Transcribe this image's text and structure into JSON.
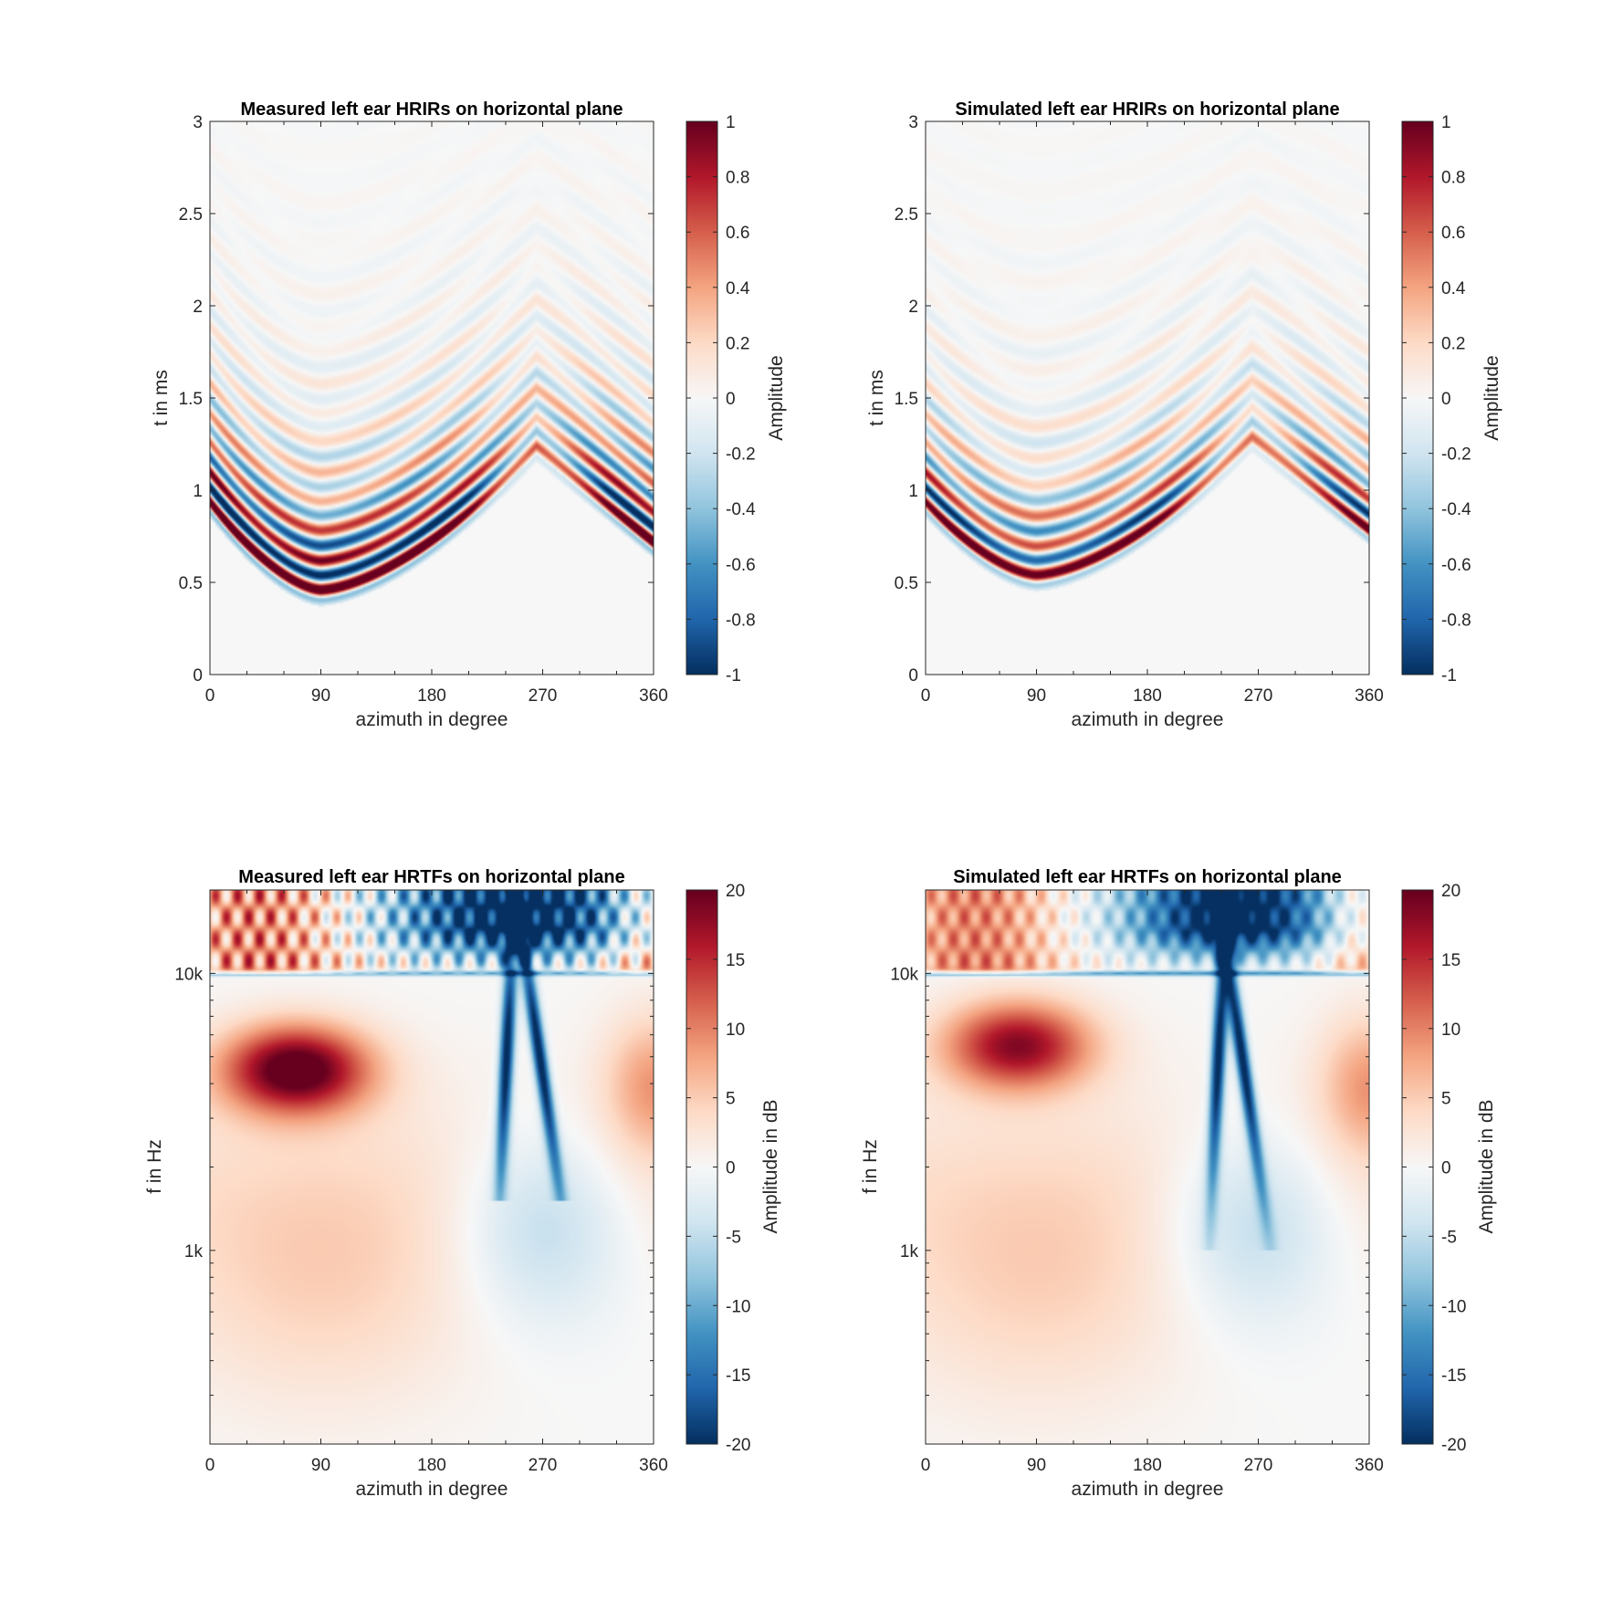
{
  "figure": {
    "background": "#ffffff"
  },
  "colormap": {
    "name": "RdBu (reversed)",
    "stops": [
      "#053061",
      "#2166ac",
      "#4393c3",
      "#92c5de",
      "#d1e5f0",
      "#f7f7f7",
      "#fddbc7",
      "#f4a582",
      "#d6604d",
      "#b2182b",
      "#67001f"
    ]
  },
  "chart_data": [
    {
      "id": "measured-hrir",
      "type": "heatmap",
      "title": "Measured left ear HRIRs on horizontal plane",
      "xlabel": "azimuth in degree",
      "ylabel": "t in ms",
      "xlim": [
        0,
        360
      ],
      "ylim": [
        0,
        3
      ],
      "xticks": [
        0,
        90,
        180,
        270,
        360
      ],
      "xtick_labels": [
        "0",
        "90",
        "180",
        "270",
        "360"
      ],
      "yticks": [
        0,
        0.5,
        1,
        1.5,
        2,
        2.5,
        3
      ],
      "ytick_labels": [
        "0",
        "0.5",
        "1",
        "1.5",
        "2",
        "2.5",
        "3"
      ],
      "yscale": "linear",
      "colorbar": {
        "label": "Amplitude",
        "clim": [
          -1,
          1
        ],
        "ticks": [
          -1,
          -0.8,
          -0.6,
          -0.4,
          -0.2,
          0,
          0.2,
          0.4,
          0.6,
          0.8,
          1
        ],
        "tick_labels": [
          "-1",
          "-0.8",
          "-0.6",
          "-0.4",
          "-0.2",
          "0",
          "0.2",
          "0.4",
          "0.6",
          "0.8",
          "1"
        ]
      },
      "pattern": {
        "kind": "hrir",
        "onset_min_ms": 0.42,
        "onset_min_az": 90,
        "secondary_peak_az": 265,
        "secondary_peak_ms": 1.2,
        "right_edge_ms": 0.68,
        "ringing_decay": 1.0,
        "amplitude": 1.6
      }
    },
    {
      "id": "simulated-hrir",
      "type": "heatmap",
      "title": "Simulated left ear HRIRs on horizontal plane",
      "xlabel": "azimuth in degree",
      "ylabel": "t in ms",
      "xlim": [
        0,
        360
      ],
      "ylim": [
        0,
        3
      ],
      "xticks": [
        0,
        90,
        180,
        270,
        360
      ],
      "xtick_labels": [
        "0",
        "90",
        "180",
        "270",
        "360"
      ],
      "yticks": [
        0,
        0.5,
        1,
        1.5,
        2,
        2.5,
        3
      ],
      "ytick_labels": [
        "0",
        "0.5",
        "1",
        "1.5",
        "2",
        "2.5",
        "3"
      ],
      "yscale": "linear",
      "colorbar": {
        "label": "Amplitude",
        "clim": [
          -1,
          1
        ],
        "ticks": [
          -1,
          -0.8,
          -0.6,
          -0.4,
          -0.2,
          0,
          0.2,
          0.4,
          0.6,
          0.8,
          1
        ],
        "tick_labels": [
          "-1",
          "-0.8",
          "-0.6",
          "-0.4",
          "-0.2",
          "0",
          "0.2",
          "0.4",
          "0.6",
          "0.8",
          "1"
        ]
      },
      "pattern": {
        "kind": "hrir",
        "onset_min_ms": 0.5,
        "onset_min_az": 90,
        "secondary_peak_az": 265,
        "secondary_peak_ms": 1.25,
        "right_edge_ms": 0.75,
        "ringing_decay": 0.7,
        "amplitude": 1.3
      }
    },
    {
      "id": "measured-hrtf",
      "type": "heatmap",
      "title": "Measured left ear HRTFs on horizontal plane",
      "xlabel": "azimuth in degree",
      "ylabel": "f in Hz",
      "xlim": [
        0,
        360
      ],
      "ylim": [
        200,
        20000
      ],
      "xticks": [
        0,
        90,
        180,
        270,
        360
      ],
      "xtick_labels": [
        "0",
        "90",
        "180",
        "270",
        "360"
      ],
      "yticks": [
        1000,
        10000
      ],
      "ytick_labels": [
        "1k",
        "10k"
      ],
      "yscale": "log",
      "colorbar": {
        "label": "Amplitude in dB",
        "clim": [
          -20,
          20
        ],
        "ticks": [
          -20,
          -15,
          -10,
          -5,
          0,
          5,
          10,
          15,
          20
        ],
        "tick_labels": [
          "-20",
          "-15",
          "-10",
          "-5",
          "0",
          "5",
          "10",
          "15",
          "20"
        ]
      },
      "pattern": {
        "kind": "hrtf",
        "hot_spot_az": 70,
        "hot_spot_hz": 4500,
        "hot_spot_db": 22,
        "shadow_az": 270,
        "notch_hz_low": 1500,
        "texture": 1.0
      }
    },
    {
      "id": "simulated-hrtf",
      "type": "heatmap",
      "title": "Simulated left ear HRTFs on horizontal plane",
      "xlabel": "azimuth in degree",
      "ylabel": "f in Hz",
      "xlim": [
        0,
        360
      ],
      "ylim": [
        200,
        20000
      ],
      "xticks": [
        0,
        90,
        180,
        270,
        360
      ],
      "xtick_labels": [
        "0",
        "90",
        "180",
        "270",
        "360"
      ],
      "yticks": [
        1000,
        10000
      ],
      "ytick_labels": [
        "1k",
        "10k"
      ],
      "yscale": "log",
      "colorbar": {
        "label": "Amplitude in dB",
        "clim": [
          -20,
          20
        ],
        "ticks": [
          -20,
          -15,
          -10,
          -5,
          0,
          5,
          10,
          15,
          20
        ],
        "tick_labels": [
          "-20",
          "-15",
          "-10",
          "-5",
          "0",
          "5",
          "10",
          "15",
          "20"
        ]
      },
      "pattern": {
        "kind": "hrtf",
        "hot_spot_az": 75,
        "hot_spot_hz": 5500,
        "hot_spot_db": 18,
        "shadow_az": 265,
        "notch_hz_low": 1000,
        "texture": 0.5
      }
    }
  ]
}
